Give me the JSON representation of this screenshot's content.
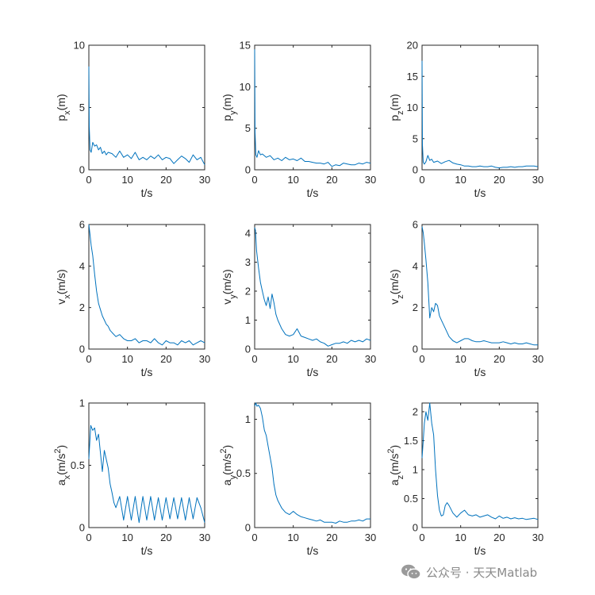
{
  "watermark": {
    "text": "公众号 · 天天Matlab",
    "icon": "wechat-icon",
    "icon_color": "#9a9a9a"
  },
  "colors": {
    "series": "#0072BD",
    "axes": "#262626",
    "background": "#ffffff"
  },
  "chart_data": [
    {
      "type": "line",
      "id": "px",
      "ylabel": "p_x(m)",
      "xlabel": "t/s",
      "xlim": [
        0,
        30
      ],
      "ylim": [
        0,
        10
      ],
      "xticks": [
        0,
        10,
        20,
        30
      ],
      "yticks": [
        0,
        5,
        10
      ],
      "x": [
        0,
        0.1,
        0.3,
        0.6,
        1,
        1.5,
        2,
        2.5,
        3,
        3.5,
        4,
        4.5,
        5,
        6,
        7,
        8,
        9,
        10,
        11,
        12,
        13,
        14,
        15,
        16,
        17,
        18,
        19,
        20,
        21,
        22,
        23,
        24,
        25,
        26,
        27,
        28,
        29,
        30
      ],
      "series": [
        {
          "values": [
            8.3,
            3.5,
            1.6,
            1.4,
            2.2,
            1.9,
            2.0,
            1.6,
            1.8,
            1.3,
            1.5,
            1.2,
            1.4,
            1.3,
            1.0,
            1.5,
            1.0,
            1.2,
            0.9,
            1.4,
            0.8,
            1.0,
            0.8,
            1.1,
            0.9,
            1.2,
            0.8,
            1.0,
            0.9,
            0.5,
            0.8,
            1.1,
            0.9,
            0.6,
            1.2,
            0.8,
            1.0,
            0.4
          ]
        }
      ]
    },
    {
      "type": "line",
      "id": "py",
      "ylabel": "p_y(m)",
      "xlabel": "t/s",
      "xlim": [
        0,
        30
      ],
      "ylim": [
        0,
        15
      ],
      "xticks": [
        0,
        10,
        20,
        30
      ],
      "yticks": [
        0,
        5,
        10,
        15
      ],
      "x": [
        0,
        0.1,
        0.3,
        0.6,
        1,
        1.5,
        2,
        3,
        4,
        5,
        6,
        7,
        8,
        9,
        10,
        11,
        12,
        13,
        14,
        15,
        16,
        17,
        18,
        19,
        20,
        21,
        22,
        23,
        24,
        25,
        26,
        27,
        28,
        29,
        30
      ],
      "series": [
        {
          "values": [
            14.5,
            4.5,
            1.8,
            1.5,
            2.3,
            1.8,
            1.9,
            1.5,
            1.7,
            1.2,
            1.4,
            1.1,
            1.5,
            1.2,
            1.3,
            1.1,
            1.4,
            1.0,
            1.0,
            0.9,
            0.8,
            0.8,
            0.7,
            0.9,
            0.4,
            0.6,
            0.5,
            0.8,
            0.7,
            0.6,
            0.6,
            0.8,
            0.7,
            0.9,
            0.8
          ]
        }
      ]
    },
    {
      "type": "line",
      "id": "pz",
      "ylabel": "p_z(m)",
      "xlabel": "t/s",
      "xlim": [
        0,
        30
      ],
      "ylim": [
        0,
        20
      ],
      "xticks": [
        0,
        10,
        20,
        30
      ],
      "yticks": [
        0,
        5,
        10,
        15,
        20
      ],
      "x": [
        0,
        0.1,
        0.3,
        0.6,
        1,
        1.5,
        2,
        2.5,
        3,
        4,
        5,
        6,
        7,
        8,
        9,
        10,
        11,
        12,
        13,
        14,
        15,
        16,
        17,
        18,
        19,
        20,
        21,
        22,
        23,
        24,
        25,
        26,
        27,
        28,
        29,
        30
      ],
      "series": [
        {
          "values": [
            17.5,
            4.0,
            1.2,
            0.9,
            1.3,
            2.3,
            1.5,
            1.7,
            1.2,
            1.4,
            1.0,
            1.3,
            1.5,
            1.1,
            0.9,
            0.8,
            0.6,
            0.6,
            0.5,
            0.5,
            0.6,
            0.5,
            0.5,
            0.6,
            0.4,
            0.3,
            0.4,
            0.4,
            0.5,
            0.4,
            0.5,
            0.5,
            0.6,
            0.6,
            0.6,
            0.5
          ]
        }
      ]
    },
    {
      "type": "line",
      "id": "vx",
      "ylabel": "v_x(m/s)",
      "xlabel": "t/s",
      "xlim": [
        0,
        30
      ],
      "ylim": [
        0,
        6
      ],
      "xticks": [
        0,
        10,
        20,
        30
      ],
      "yticks": [
        0,
        2,
        4,
        6
      ],
      "x": [
        0,
        0.3,
        0.6,
        1,
        1.5,
        2,
        2.5,
        3,
        3.5,
        4,
        4.5,
        5,
        5.5,
        6,
        7,
        8,
        9,
        10,
        11,
        12,
        13,
        14,
        15,
        16,
        17,
        18,
        19,
        20,
        21,
        22,
        23,
        24,
        25,
        26,
        27,
        28,
        29,
        30
      ],
      "series": [
        {
          "values": [
            6.0,
            5.5,
            5.0,
            4.5,
            3.6,
            2.8,
            2.2,
            1.9,
            1.6,
            1.4,
            1.2,
            1.1,
            0.9,
            0.8,
            0.6,
            0.7,
            0.5,
            0.4,
            0.4,
            0.5,
            0.3,
            0.4,
            0.4,
            0.3,
            0.5,
            0.3,
            0.2,
            0.4,
            0.3,
            0.3,
            0.2,
            0.4,
            0.3,
            0.4,
            0.2,
            0.3,
            0.4,
            0.3
          ]
        }
      ]
    },
    {
      "type": "line",
      "id": "vy",
      "ylabel": "v_y(m/s)",
      "xlabel": "t/s",
      "xlim": [
        0,
        30
      ],
      "ylim": [
        0,
        4.3
      ],
      "xticks": [
        0,
        10,
        20,
        30
      ],
      "yticks": [
        0,
        1,
        2,
        3,
        4
      ],
      "x": [
        0,
        0.2,
        0.5,
        1,
        1.5,
        2,
        2.5,
        3,
        3.5,
        4,
        4.5,
        5,
        5.5,
        6,
        7,
        8,
        9,
        10,
        11,
        12,
        13,
        14,
        15,
        16,
        17,
        18,
        19,
        20,
        21,
        22,
        23,
        24,
        25,
        26,
        27,
        28,
        29,
        30
      ],
      "series": [
        {
          "values": [
            4.2,
            4.1,
            3.4,
            2.8,
            2.3,
            2.0,
            1.7,
            1.5,
            1.8,
            1.4,
            1.9,
            1.6,
            1.2,
            1.0,
            0.7,
            0.5,
            0.45,
            0.5,
            0.7,
            0.45,
            0.4,
            0.35,
            0.3,
            0.35,
            0.25,
            0.2,
            0.1,
            0.15,
            0.2,
            0.2,
            0.25,
            0.2,
            0.3,
            0.25,
            0.3,
            0.25,
            0.35,
            0.3
          ]
        }
      ]
    },
    {
      "type": "line",
      "id": "vz",
      "ylabel": "v_z(m/s)",
      "xlabel": "t/s",
      "xlim": [
        0,
        30
      ],
      "ylim": [
        0,
        6
      ],
      "xticks": [
        0,
        10,
        20,
        30
      ],
      "yticks": [
        0,
        2,
        4,
        6
      ],
      "x": [
        0,
        0.3,
        0.6,
        1,
        1.5,
        2,
        2.5,
        3,
        3.5,
        4,
        4.5,
        5,
        6,
        7,
        8,
        9,
        10,
        11,
        12,
        13,
        14,
        15,
        16,
        17,
        18,
        19,
        20,
        21,
        22,
        23,
        24,
        25,
        26,
        27,
        28,
        29,
        30
      ],
      "series": [
        {
          "values": [
            5.9,
            5.6,
            5.1,
            4.3,
            3.2,
            1.5,
            2.0,
            1.8,
            2.2,
            2.1,
            1.6,
            1.4,
            1.0,
            0.6,
            0.4,
            0.3,
            0.4,
            0.5,
            0.5,
            0.4,
            0.35,
            0.35,
            0.4,
            0.35,
            0.3,
            0.3,
            0.3,
            0.35,
            0.3,
            0.25,
            0.3,
            0.25,
            0.25,
            0.3,
            0.25,
            0.2,
            0.2
          ]
        }
      ]
    },
    {
      "type": "line",
      "id": "ax",
      "ylabel": "a_x(m/s^2)",
      "xlabel": "t/s",
      "xlim": [
        0,
        30
      ],
      "ylim": [
        0,
        1
      ],
      "xticks": [
        0,
        10,
        20,
        30
      ],
      "yticks": [
        0,
        0.5,
        1
      ],
      "x": [
        0,
        0.5,
        1,
        1.5,
        2,
        2.5,
        3,
        3.5,
        4,
        4.5,
        5,
        5.5,
        6,
        6.5,
        7,
        8,
        9,
        10,
        11,
        12,
        13,
        14,
        15,
        16,
        17,
        18,
        19,
        20,
        21,
        22,
        23,
        24,
        25,
        26,
        27,
        28,
        29,
        30
      ],
      "series": [
        {
          "values": [
            0.55,
            0.82,
            0.78,
            0.8,
            0.7,
            0.75,
            0.6,
            0.45,
            0.62,
            0.55,
            0.48,
            0.35,
            0.28,
            0.2,
            0.16,
            0.25,
            0.06,
            0.25,
            0.06,
            0.25,
            0.04,
            0.25,
            0.06,
            0.25,
            0.06,
            0.24,
            0.06,
            0.24,
            0.07,
            0.24,
            0.07,
            0.24,
            0.06,
            0.24,
            0.07,
            0.24,
            0.16,
            0.04
          ]
        }
      ]
    },
    {
      "type": "line",
      "id": "ay",
      "ylabel": "a_y(m/s^2)",
      "xlabel": "t/s",
      "xlim": [
        0,
        30
      ],
      "ylim": [
        0,
        1.15
      ],
      "xticks": [
        0,
        10,
        20,
        30
      ],
      "yticks": [
        0,
        0.5,
        1
      ],
      "x": [
        0,
        0.3,
        0.6,
        1,
        1.5,
        2,
        2.5,
        3,
        3.5,
        4,
        4.5,
        5,
        5.5,
        6,
        7,
        8,
        9,
        10,
        11,
        12,
        13,
        14,
        15,
        16,
        17,
        18,
        19,
        20,
        21,
        22,
        23,
        24,
        25,
        26,
        27,
        28,
        29,
        30
      ],
      "series": [
        {
          "values": [
            1.12,
            1.15,
            1.12,
            1.13,
            1.1,
            1.02,
            0.9,
            0.85,
            0.75,
            0.65,
            0.55,
            0.4,
            0.3,
            0.25,
            0.18,
            0.14,
            0.12,
            0.15,
            0.12,
            0.1,
            0.09,
            0.08,
            0.07,
            0.06,
            0.07,
            0.05,
            0.05,
            0.05,
            0.04,
            0.06,
            0.05,
            0.05,
            0.06,
            0.06,
            0.07,
            0.06,
            0.08,
            0.08
          ]
        }
      ]
    },
    {
      "type": "line",
      "id": "az",
      "ylabel": "a_z(m/s^2)",
      "xlabel": "t/s",
      "xlim": [
        0,
        30
      ],
      "ylim": [
        0,
        2.15
      ],
      "xticks": [
        0,
        10,
        20,
        30
      ],
      "yticks": [
        0,
        0.5,
        1,
        1.5,
        2
      ],
      "x": [
        0,
        0.3,
        0.6,
        1,
        1.5,
        2,
        2.5,
        3,
        3.5,
        4,
        4.5,
        5,
        5.5,
        6,
        6.5,
        7,
        8,
        9,
        10,
        11,
        12,
        13,
        14,
        15,
        16,
        17,
        18,
        19,
        20,
        21,
        22,
        23,
        24,
        25,
        26,
        27,
        28,
        29,
        30
      ],
      "series": [
        {
          "values": [
            1.2,
            1.5,
            1.8,
            2.0,
            1.85,
            2.15,
            1.8,
            1.6,
            1.0,
            0.55,
            0.3,
            0.2,
            0.22,
            0.38,
            0.43,
            0.38,
            0.25,
            0.18,
            0.25,
            0.3,
            0.22,
            0.2,
            0.22,
            0.18,
            0.2,
            0.22,
            0.18,
            0.15,
            0.2,
            0.16,
            0.18,
            0.15,
            0.17,
            0.15,
            0.16,
            0.14,
            0.15,
            0.16,
            0.14
          ]
        }
      ]
    }
  ]
}
